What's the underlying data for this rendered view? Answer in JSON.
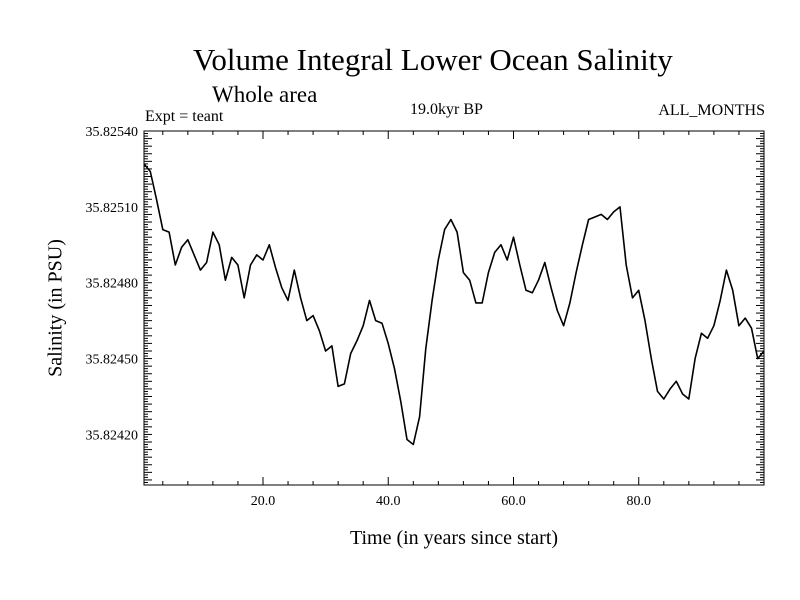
{
  "chart_data": {
    "type": "line",
    "title": "Volume Integral Lower Ocean Salinity",
    "subtitle": "Whole area",
    "experiment_label": "Expt = teant",
    "period_label": "19.0kyr BP",
    "months_label": "ALL_MONTHS",
    "xlabel": "Time (in years since start)",
    "ylabel": "Salinity (in PSU)",
    "xlim": [
      1,
      100
    ],
    "ylim": [
      35.824,
      35.8254
    ],
    "xticks": [
      20,
      40,
      60,
      80
    ],
    "xtick_labels": [
      "20.0",
      "40.0",
      "60.0",
      "80.0"
    ],
    "yticks": [
      35.8242,
      35.8245,
      35.8248,
      35.8251,
      35.8254
    ],
    "ytick_labels": [
      "35.82420",
      "35.82450",
      "35.82480",
      "35.82510",
      "35.82540"
    ],
    "grid": false,
    "series": [
      {
        "name": "Salinity",
        "x": [
          1,
          2,
          3,
          4,
          5,
          6,
          7,
          8,
          9,
          10,
          11,
          12,
          13,
          14,
          15,
          16,
          17,
          18,
          19,
          20,
          21,
          22,
          23,
          24,
          25,
          26,
          27,
          28,
          29,
          30,
          31,
          32,
          33,
          34,
          35,
          36,
          37,
          38,
          39,
          40,
          41,
          42,
          43,
          44,
          45,
          46,
          47,
          48,
          49,
          50,
          51,
          52,
          53,
          54,
          55,
          56,
          57,
          58,
          59,
          60,
          61,
          62,
          63,
          64,
          65,
          66,
          67,
          68,
          69,
          70,
          71,
          72,
          73,
          74,
          75,
          76,
          77,
          78,
          79,
          80,
          81,
          82,
          83,
          84,
          85,
          86,
          87,
          88,
          89,
          90,
          91,
          92,
          93,
          94,
          95,
          96,
          97,
          98,
          99,
          100
        ],
        "values": [
          35.82527,
          35.82524,
          35.82513,
          35.82501,
          35.825,
          35.82487,
          35.82494,
          35.82497,
          35.82491,
          35.82485,
          35.82488,
          35.825,
          35.82495,
          35.82481,
          35.8249,
          35.82487,
          35.82474,
          35.82487,
          35.82491,
          35.82489,
          35.82495,
          35.82486,
          35.82478,
          35.82473,
          35.82485,
          35.82474,
          35.82465,
          35.82467,
          35.82461,
          35.82453,
          35.82455,
          35.82439,
          35.8244,
          35.82452,
          35.82457,
          35.82463,
          35.82473,
          35.82465,
          35.82464,
          35.82456,
          35.82446,
          35.82433,
          35.82418,
          35.82416,
          35.82427,
          35.82454,
          35.82473,
          35.82489,
          35.82501,
          35.82505,
          35.825,
          35.82484,
          35.82481,
          35.82472,
          35.82472,
          35.82484,
          35.82492,
          35.82495,
          35.82489,
          35.82498,
          35.82487,
          35.82477,
          35.82476,
          35.82481,
          35.82488,
          35.82478,
          35.82469,
          35.82463,
          35.82472,
          35.82484,
          35.82495,
          35.82505,
          35.82506,
          35.82507,
          35.82505,
          35.82508,
          35.8251,
          35.82487,
          35.82474,
          35.82477,
          35.82465,
          35.8245,
          35.82437,
          35.82434,
          35.82438,
          35.82441,
          35.82436,
          35.82434,
          35.8245,
          35.8246,
          35.82458,
          35.82463,
          35.82473,
          35.82485,
          35.82477,
          35.82463,
          35.82466,
          35.82462,
          35.8245,
          35.82453
        ]
      }
    ]
  }
}
